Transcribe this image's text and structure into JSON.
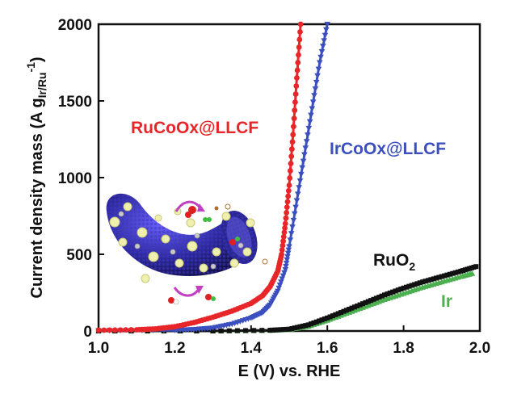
{
  "chart_data": {
    "type": "line",
    "title": "",
    "xlabel": "E (V) vs. RHE",
    "ylabel": {
      "main": "Current density mass (A g",
      "sub": "Ir/Ru",
      "sup": "-1",
      "close": ")"
    },
    "xlim": [
      1.0,
      2.0
    ],
    "ylim": [
      0,
      2000
    ],
    "x_ticks": [
      "1.0",
      "1.2",
      "1.4",
      "1.6",
      "1.8",
      "2.0"
    ],
    "y_ticks": [
      "0",
      "500",
      "1000",
      "1500",
      "2000"
    ],
    "grid": false,
    "series": [
      {
        "name": "RuCoOx@LLCF",
        "color": "#e8262a",
        "marker": "circle",
        "x": [
          1.0,
          1.1,
          1.15,
          1.2,
          1.25,
          1.3,
          1.35,
          1.4,
          1.43,
          1.45,
          1.47,
          1.48,
          1.49,
          1.5,
          1.51,
          1.52,
          1.53
        ],
        "y": [
          5,
          8,
          14,
          28,
          55,
          90,
          130,
          180,
          230,
          290,
          390,
          500,
          700,
          950,
          1280,
          1650,
          2000
        ]
      },
      {
        "name": "IrCoOx@LLCF",
        "color": "#3b4fbf",
        "marker": "triangle-down",
        "x": [
          1.0,
          1.2,
          1.25,
          1.3,
          1.35,
          1.4,
          1.43,
          1.45,
          1.47,
          1.49,
          1.5,
          1.52,
          1.54,
          1.56,
          1.58,
          1.6
        ],
        "y": [
          3,
          5,
          10,
          20,
          45,
          85,
          120,
          170,
          260,
          400,
          550,
          850,
          1150,
          1450,
          1750,
          2000
        ]
      },
      {
        "name": "RuO",
        "name_sub": "2",
        "color": "#111111",
        "marker": "square",
        "x": [
          1.0,
          1.3,
          1.45,
          1.5,
          1.55,
          1.6,
          1.65,
          1.7,
          1.75,
          1.8,
          1.85,
          1.9,
          1.95,
          1.99
        ],
        "y": [
          0,
          0,
          5,
          12,
          40,
          85,
          135,
          185,
          235,
          280,
          320,
          355,
          390,
          420
        ]
      },
      {
        "name": "Ir",
        "color": "#4caf50",
        "marker": "triangle-up",
        "x": [
          1.0,
          1.3,
          1.45,
          1.5,
          1.55,
          1.6,
          1.65,
          1.7,
          1.75,
          1.8,
          1.85,
          1.9,
          1.95,
          1.98
        ],
        "y": [
          0,
          0,
          4,
          10,
          30,
          70,
          115,
          160,
          205,
          245,
          285,
          320,
          355,
          375
        ]
      }
    ]
  },
  "inset_image": {
    "description": "",
    "icon": "nanofiber-illustration-icon"
  }
}
